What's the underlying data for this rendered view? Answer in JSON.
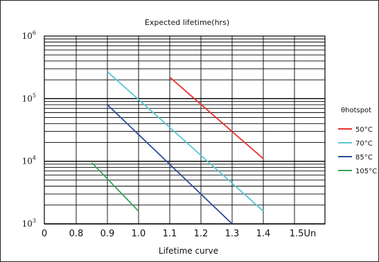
{
  "chart_data": {
    "type": "line",
    "title": "Expected lifetime(hrs)",
    "xlabel": "Lifetime curve",
    "ylabel": "",
    "y_scale": "log",
    "xlim": [
      0.7,
      1.55
    ],
    "ylim": [
      1000,
      1000000
    ],
    "x_ticks": [
      "0",
      "0.8",
      "0.9",
      "1.0",
      "1.1",
      "1.2",
      "1.3",
      "1.4",
      "1.5Un"
    ],
    "y_ticks": [
      {
        "base": "10",
        "exp": "3"
      },
      {
        "base": "10",
        "exp": "4"
      },
      {
        "base": "10",
        "exp": "5"
      },
      {
        "base": "10",
        "exp": "6"
      }
    ],
    "legend_title": "θhotspot",
    "legend_position": "right",
    "grid": true,
    "series": [
      {
        "name": "50°C",
        "color": "#e8302c",
        "points": [
          [
            1.1,
            220000
          ],
          [
            1.4,
            11000
          ]
        ]
      },
      {
        "name": "70°C",
        "color": "#59c6d4",
        "points": [
          [
            0.9,
            270000
          ],
          [
            1.4,
            1600
          ]
        ]
      },
      {
        "name": "85°C",
        "color": "#2a4a9a",
        "points": [
          [
            0.9,
            80000
          ],
          [
            1.3,
            1000
          ]
        ]
      },
      {
        "name": "105°C",
        "color": "#3aa356",
        "points": [
          [
            0.85,
            9500
          ],
          [
            1.0,
            1600
          ]
        ]
      }
    ]
  }
}
